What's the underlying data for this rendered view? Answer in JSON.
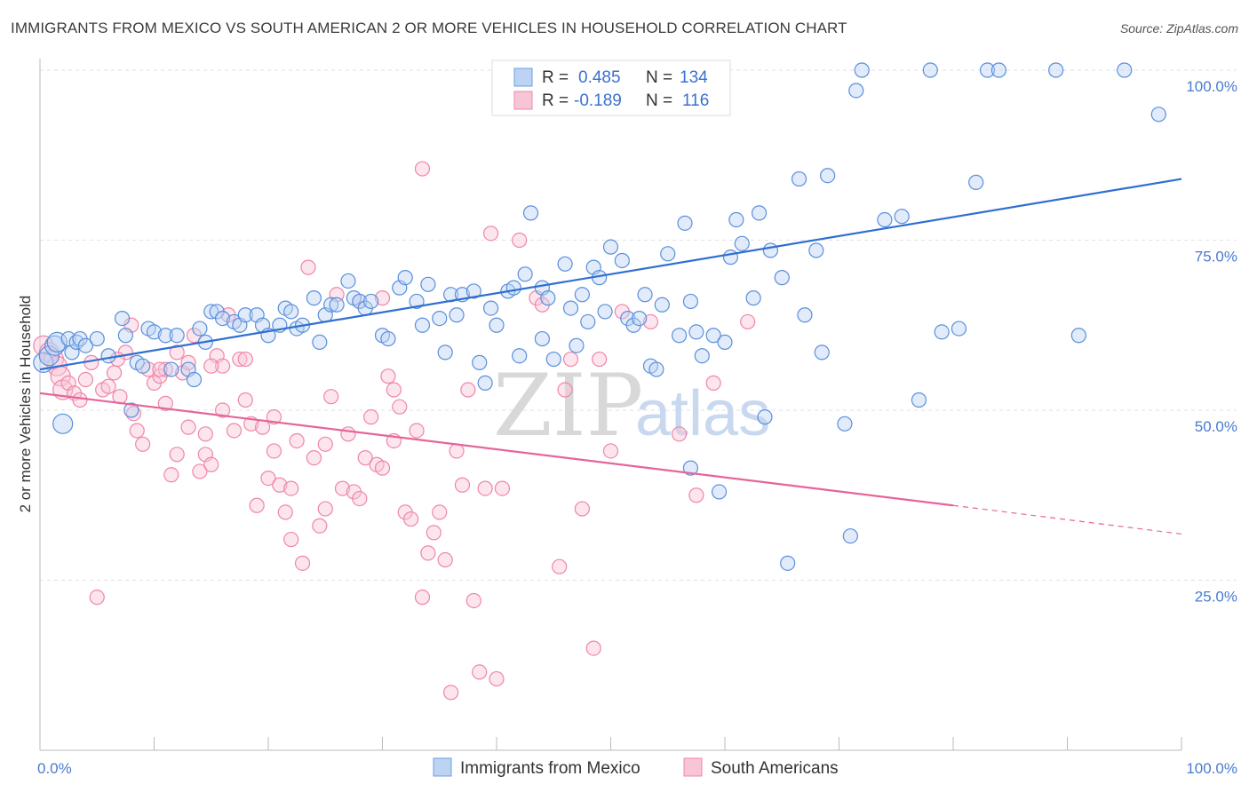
{
  "title": "IMMIGRANTS FROM MEXICO VS SOUTH AMERICAN 2 OR MORE VEHICLES IN HOUSEHOLD CORRELATION CHART",
  "source": "Source: ZipAtlas.com",
  "watermark": {
    "zip": "ZIP",
    "atlas": "atlas"
  },
  "legend": {
    "rows": [
      {
        "r_label": "R =",
        "r_value": "0.485",
        "n_label": "N =",
        "n_value": "134",
        "color": "#6d9fe0"
      },
      {
        "r_label": "R =",
        "r_value": "-0.189",
        "n_label": "N =",
        "n_value": "116",
        "color": "#ef86a8"
      }
    ]
  },
  "bottom_legend": [
    {
      "label": "Immigrants from Mexico",
      "color": "#6d9fe0"
    },
    {
      "label": "South Americans",
      "color": "#ef86a8"
    }
  ],
  "chart_data": {
    "type": "scatter",
    "title": "IMMIGRANTS FROM MEXICO VS SOUTH AMERICAN 2 OR MORE VEHICLES IN HOUSEHOLD CORRELATION CHART",
    "xlabel": "",
    "ylabel": "2 or more Vehicles in Household",
    "xlim": [
      0,
      100
    ],
    "ylim": [
      0,
      100
    ],
    "x_tick_labels": [
      "0.0%",
      "100.0%"
    ],
    "y_tick_labels": [
      "25.0%",
      "50.0%",
      "75.0%",
      "100.0%"
    ],
    "y_ticks": [
      25,
      50,
      75,
      100
    ],
    "grid": true,
    "series": [
      {
        "name": "Immigrants from Mexico",
        "color": "#6d9fe0",
        "trend": {
          "x": [
            0,
            100
          ],
          "y": [
            56.0,
            84.0
          ],
          "style": "solid"
        },
        "points": [
          [
            0.3,
            57.0
          ],
          [
            0.8,
            58.0
          ],
          [
            1.3,
            59.5
          ],
          [
            1.5,
            60.0
          ],
          [
            2.0,
            48.0
          ],
          [
            2.5,
            60.5
          ],
          [
            2.8,
            58.5
          ],
          [
            3.2,
            60.0
          ],
          [
            3.5,
            60.5
          ],
          [
            4.0,
            59.5
          ],
          [
            5.0,
            60.5
          ],
          [
            6.0,
            58.0
          ],
          [
            7.2,
            63.5
          ],
          [
            7.5,
            61.0
          ],
          [
            8.0,
            50.0
          ],
          [
            8.5,
            57.0
          ],
          [
            9.0,
            56.5
          ],
          [
            9.5,
            62.0
          ],
          [
            10.0,
            61.5
          ],
          [
            11.0,
            61.0
          ],
          [
            11.5,
            56.0
          ],
          [
            12.0,
            61.0
          ],
          [
            13.0,
            56.0
          ],
          [
            13.5,
            54.5
          ],
          [
            14.0,
            62.0
          ],
          [
            14.5,
            60.0
          ],
          [
            15.0,
            64.5
          ],
          [
            15.5,
            64.5
          ],
          [
            16.0,
            63.5
          ],
          [
            17.0,
            63.0
          ],
          [
            17.5,
            62.5
          ],
          [
            18.0,
            64.0
          ],
          [
            19.0,
            64.0
          ],
          [
            19.5,
            62.5
          ],
          [
            20.0,
            61.0
          ],
          [
            21.0,
            62.5
          ],
          [
            21.5,
            65.0
          ],
          [
            22.0,
            64.5
          ],
          [
            22.5,
            62.0
          ],
          [
            23.0,
            62.5
          ],
          [
            24.0,
            66.5
          ],
          [
            24.5,
            60.0
          ],
          [
            25.0,
            64.0
          ],
          [
            25.5,
            65.5
          ],
          [
            26.0,
            65.5
          ],
          [
            27.0,
            69.0
          ],
          [
            27.5,
            66.5
          ],
          [
            28.0,
            66.0
          ],
          [
            28.5,
            65.0
          ],
          [
            29.0,
            66.0
          ],
          [
            30.0,
            61.0
          ],
          [
            30.5,
            60.5
          ],
          [
            31.5,
            68.0
          ],
          [
            32.0,
            69.5
          ],
          [
            33.0,
            66.0
          ],
          [
            34.0,
            68.5
          ],
          [
            35.0,
            63.5
          ],
          [
            35.5,
            58.5
          ],
          [
            36.0,
            67.0
          ],
          [
            36.5,
            64.0
          ],
          [
            37.0,
            67.0
          ],
          [
            38.0,
            67.5
          ],
          [
            38.5,
            57.0
          ],
          [
            39.0,
            54.0
          ],
          [
            39.5,
            65.0
          ],
          [
            40.0,
            62.5
          ],
          [
            41.0,
            67.5
          ],
          [
            41.5,
            68.0
          ],
          [
            42.0,
            58.0
          ],
          [
            42.5,
            70.0
          ],
          [
            43.0,
            79.0
          ],
          [
            44.0,
            68.0
          ],
          [
            44.5,
            66.5
          ],
          [
            45.0,
            57.5
          ],
          [
            46.0,
            71.5
          ],
          [
            46.5,
            65.0
          ],
          [
            47.0,
            59.5
          ],
          [
            47.5,
            67.0
          ],
          [
            48.5,
            71.0
          ],
          [
            49.0,
            69.5
          ],
          [
            49.5,
            64.5
          ],
          [
            50.0,
            74.0
          ],
          [
            51.0,
            72.0
          ],
          [
            51.5,
            63.5
          ],
          [
            52.0,
            62.5
          ],
          [
            52.5,
            63.5
          ],
          [
            53.0,
            67.0
          ],
          [
            53.5,
            56.5
          ],
          [
            54.0,
            56.0
          ],
          [
            54.5,
            65.5
          ],
          [
            55.0,
            73.0
          ],
          [
            56.0,
            61.0
          ],
          [
            56.5,
            77.5
          ],
          [
            57.0,
            66.0
          ],
          [
            57.5,
            61.5
          ],
          [
            58.0,
            58.0
          ],
          [
            59.0,
            61.0
          ],
          [
            59.5,
            38.0
          ],
          [
            60.0,
            60.0
          ],
          [
            60.5,
            72.5
          ],
          [
            61.0,
            78.0
          ],
          [
            61.5,
            74.5
          ],
          [
            62.5,
            66.5
          ],
          [
            63.0,
            79.0
          ],
          [
            63.5,
            49.0
          ],
          [
            64.0,
            73.5
          ],
          [
            65.0,
            69.5
          ],
          [
            65.5,
            27.5
          ],
          [
            66.5,
            84.0
          ],
          [
            67.0,
            64.0
          ],
          [
            68.0,
            73.5
          ],
          [
            68.5,
            58.5
          ],
          [
            69.0,
            84.5
          ],
          [
            70.5,
            48.0
          ],
          [
            71.0,
            31.5
          ],
          [
            71.5,
            97.0
          ],
          [
            72.0,
            100.0
          ],
          [
            74.0,
            78.0
          ],
          [
            75.5,
            78.5
          ],
          [
            77.0,
            51.5
          ],
          [
            78.0,
            100.0
          ],
          [
            79.0,
            61.5
          ],
          [
            80.5,
            62.0
          ],
          [
            82.0,
            83.5
          ],
          [
            83.0,
            100.0
          ],
          [
            84.0,
            100.0
          ],
          [
            89.0,
            100.0
          ],
          [
            91.0,
            61.0
          ],
          [
            95.0,
            100.0
          ],
          [
            98.0,
            93.5
          ],
          [
            57.0,
            41.5
          ],
          [
            48.0,
            63.0
          ],
          [
            44.0,
            60.5
          ],
          [
            33.5,
            62.5
          ]
        ],
        "sizes_note": "larger bubbles near x 0-2"
      },
      {
        "name": "South Americans",
        "color": "#ef86a8",
        "trend": {
          "x": [
            0,
            80
          ],
          "y": [
            52.5,
            36.0
          ],
          "style": "solid",
          "dashed_to": [
            100,
            31.8
          ]
        },
        "points": [
          [
            0.3,
            59.5
          ],
          [
            0.8,
            58.5
          ],
          [
            1.2,
            57.5
          ],
          [
            1.5,
            56.5
          ],
          [
            1.8,
            55.0
          ],
          [
            2.0,
            53.0
          ],
          [
            2.5,
            54.0
          ],
          [
            3.0,
            52.5
          ],
          [
            3.5,
            51.5
          ],
          [
            4.0,
            54.5
          ],
          [
            4.5,
            57.0
          ],
          [
            5.0,
            22.5
          ],
          [
            5.5,
            53.0
          ],
          [
            6.0,
            53.5
          ],
          [
            6.5,
            55.5
          ],
          [
            7.0,
            52.0
          ],
          [
            7.5,
            58.5
          ],
          [
            8.0,
            62.5
          ],
          [
            8.5,
            47.0
          ],
          [
            9.0,
            45.0
          ],
          [
            9.5,
            56.0
          ],
          [
            10.0,
            54.0
          ],
          [
            10.5,
            55.0
          ],
          [
            11.0,
            56.0
          ],
          [
            11.5,
            40.5
          ],
          [
            12.0,
            43.5
          ],
          [
            12.5,
            55.5
          ],
          [
            13.0,
            57.0
          ],
          [
            13.5,
            61.0
          ],
          [
            14.0,
            41.0
          ],
          [
            14.5,
            43.5
          ],
          [
            15.0,
            42.0
          ],
          [
            15.5,
            58.0
          ],
          [
            16.0,
            56.5
          ],
          [
            16.5,
            64.0
          ],
          [
            17.0,
            47.0
          ],
          [
            17.5,
            57.5
          ],
          [
            18.0,
            51.5
          ],
          [
            18.5,
            48.0
          ],
          [
            19.0,
            36.0
          ],
          [
            19.5,
            47.5
          ],
          [
            20.0,
            40.0
          ],
          [
            20.5,
            44.0
          ],
          [
            21.0,
            39.0
          ],
          [
            21.5,
            35.0
          ],
          [
            22.0,
            31.0
          ],
          [
            22.5,
            45.5
          ],
          [
            23.0,
            27.5
          ],
          [
            23.5,
            71.0
          ],
          [
            24.0,
            43.0
          ],
          [
            24.5,
            33.0
          ],
          [
            25.0,
            45.0
          ],
          [
            25.5,
            52.0
          ],
          [
            26.0,
            67.0
          ],
          [
            26.5,
            38.5
          ],
          [
            27.0,
            46.5
          ],
          [
            27.5,
            38.0
          ],
          [
            28.0,
            66.0
          ],
          [
            28.5,
            43.0
          ],
          [
            29.0,
            49.0
          ],
          [
            29.5,
            42.0
          ],
          [
            30.0,
            66.5
          ],
          [
            30.5,
            55.0
          ],
          [
            31.0,
            53.0
          ],
          [
            31.5,
            50.5
          ],
          [
            32.0,
            35.0
          ],
          [
            32.5,
            34.0
          ],
          [
            33.0,
            47.0
          ],
          [
            33.5,
            22.5
          ],
          [
            34.0,
            29.0
          ],
          [
            34.5,
            32.0
          ],
          [
            35.0,
            35.0
          ],
          [
            35.5,
            28.0
          ],
          [
            36.0,
            8.5
          ],
          [
            36.5,
            44.0
          ],
          [
            37.0,
            39.0
          ],
          [
            37.5,
            53.0
          ],
          [
            38.0,
            22.0
          ],
          [
            38.5,
            11.5
          ],
          [
            39.0,
            38.5
          ],
          [
            39.5,
            76.0
          ],
          [
            40.0,
            10.5
          ],
          [
            40.5,
            38.5
          ],
          [
            42.0,
            75.0
          ],
          [
            43.5,
            66.5
          ],
          [
            44.0,
            65.5
          ],
          [
            45.5,
            27.0
          ],
          [
            46.0,
            53.0
          ],
          [
            46.5,
            57.5
          ],
          [
            47.5,
            35.5
          ],
          [
            48.5,
            15.0
          ],
          [
            49.0,
            57.5
          ],
          [
            50.0,
            44.0
          ],
          [
            53.5,
            63.0
          ],
          [
            51.0,
            64.5
          ],
          [
            56.0,
            46.5
          ],
          [
            57.5,
            37.5
          ],
          [
            59.0,
            54.0
          ],
          [
            62.0,
            63.0
          ],
          [
            33.5,
            85.5
          ],
          [
            10.5,
            56.0
          ],
          [
            12.0,
            58.5
          ],
          [
            15.0,
            56.5
          ],
          [
            18.0,
            57.5
          ],
          [
            20.5,
            49.0
          ],
          [
            25.0,
            35.5
          ],
          [
            30.0,
            41.5
          ],
          [
            31.0,
            45.5
          ],
          [
            16.0,
            50.0
          ],
          [
            13.0,
            47.5
          ],
          [
            6.8,
            57.5
          ],
          [
            8.2,
            49.5
          ],
          [
            11.0,
            51.0
          ],
          [
            14.5,
            46.5
          ],
          [
            22.0,
            38.5
          ],
          [
            28.0,
            37.0
          ]
        ]
      }
    ]
  }
}
